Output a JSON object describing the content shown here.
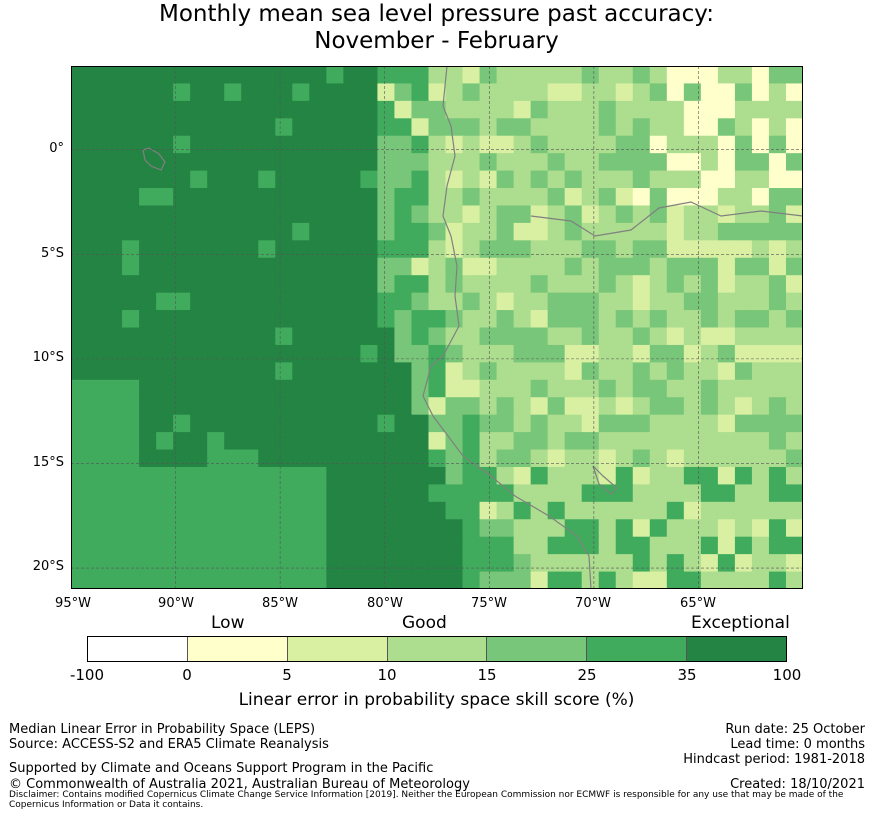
{
  "title": {
    "line1": "Monthly mean sea level pressure past accuracy:",
    "line2": "November - February"
  },
  "map": {
    "lat_labels": [
      "0°",
      "5°S",
      "10°S",
      "15°S",
      "20°S"
    ],
    "lon_labels": [
      "95°W",
      "90°W",
      "85°W",
      "80°W",
      "75°W",
      "70°W",
      "65°W"
    ],
    "extent": {
      "lon_min": -95,
      "lon_max": -60,
      "lat_min": -21,
      "lat_max": 4
    },
    "coastline_color": "#808080",
    "gridline_color": "#555555"
  },
  "legend": {
    "categories": {
      "low": "Low",
      "good": "Good",
      "exceptional": "Exceptional"
    },
    "ticks": [
      "-100",
      "0",
      "5",
      "10",
      "15",
      "25",
      "35",
      "100"
    ],
    "colors": [
      "#ffffff",
      "#ffffcc",
      "#d9f0a3",
      "#addd8e",
      "#78c679",
      "#41ab5d",
      "#238443"
    ],
    "label": "Linear error in probability space skill score (%)"
  },
  "footer": {
    "left": {
      "line1": "Median Linear Error in Probability Space (LEPS)",
      "line2": "Source: ACCESS-S2 and ERA5 Climate Reanalysis",
      "line3": "Supported by Climate and Oceans Support Program in the Pacific",
      "line4": "© Commonwealth of Australia 2021, Australian Bureau of Meteorology"
    },
    "right": {
      "run_date": "Run date: 25 October",
      "lead_time": "Lead time: 0 months",
      "hindcast": "Hindcast period: 1981-2018",
      "created": "Created: 18/10/2021"
    },
    "disclaimer": "Disclaimer: Contains modified Copernicus Climate Change Service Information [2019]. Neither the European Commission nor ECMWF is responsible for any use that may be made of the Copernicus Information or Data it contains."
  }
}
